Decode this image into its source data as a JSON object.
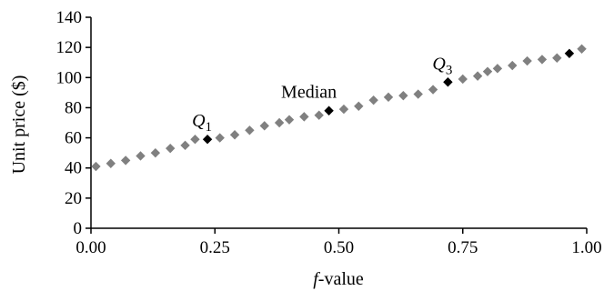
{
  "chart_data": {
    "type": "scatter",
    "title": "",
    "xlabel": {
      "italic": "f",
      "rest": "-value"
    },
    "ylabel": "Unit price ($)",
    "xlim": [
      0,
      1
    ],
    "ylim": [
      0,
      140
    ],
    "xticks": [
      "0.00",
      "0.25",
      "0.50",
      "0.75",
      "1.00"
    ],
    "yticks": [
      "0",
      "20",
      "40",
      "60",
      "80",
      "100",
      "120",
      "140"
    ],
    "grid": false,
    "series": [
      {
        "color": "#808080",
        "marker": "diamond",
        "points": [
          [
            0.01,
            41
          ],
          [
            0.04,
            43
          ],
          [
            0.07,
            45
          ],
          [
            0.1,
            48
          ],
          [
            0.13,
            50
          ],
          [
            0.16,
            53
          ],
          [
            0.19,
            55
          ],
          [
            0.21,
            59
          ],
          [
            0.26,
            60
          ],
          [
            0.29,
            62
          ],
          [
            0.32,
            65
          ],
          [
            0.35,
            68
          ],
          [
            0.38,
            70
          ],
          [
            0.4,
            72
          ],
          [
            0.43,
            74
          ],
          [
            0.46,
            75
          ],
          [
            0.51,
            79
          ],
          [
            0.54,
            81
          ],
          [
            0.57,
            85
          ],
          [
            0.6,
            87
          ],
          [
            0.63,
            88
          ],
          [
            0.66,
            89
          ],
          [
            0.69,
            92
          ],
          [
            0.75,
            99
          ],
          [
            0.78,
            101
          ],
          [
            0.8,
            104
          ],
          [
            0.82,
            106
          ],
          [
            0.85,
            108
          ],
          [
            0.88,
            111
          ],
          [
            0.91,
            112
          ],
          [
            0.94,
            113
          ],
          [
            0.99,
            119
          ]
        ]
      },
      {
        "color": "#000000",
        "marker": "diamond",
        "points": [
          [
            0.235,
            59
          ],
          [
            0.48,
            78
          ],
          [
            0.72,
            97
          ],
          [
            0.965,
            116
          ]
        ]
      }
    ],
    "annotations": [
      {
        "x": 0.235,
        "y": 59,
        "label": "Q",
        "subscript": "1",
        "italic": true
      },
      {
        "x": 0.48,
        "y": 78,
        "label": "Median",
        "subscript": "",
        "italic": false
      },
      {
        "x": 0.72,
        "y": 97,
        "label": "Q",
        "subscript": "3",
        "italic": true
      }
    ]
  }
}
